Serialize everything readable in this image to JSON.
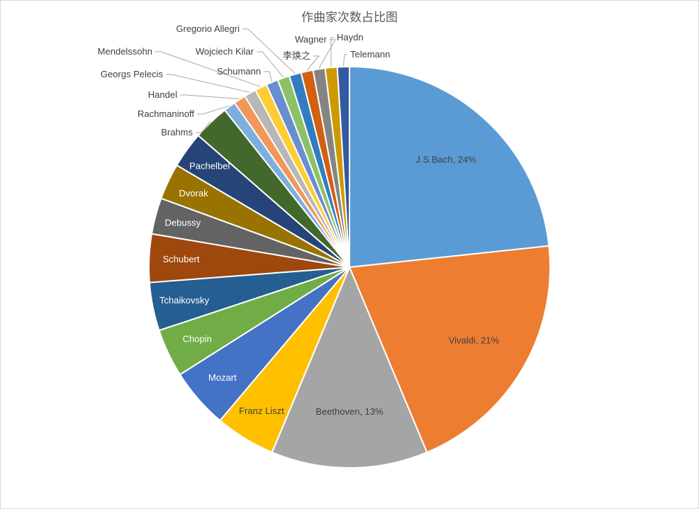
{
  "chart_data": {
    "type": "pie",
    "title": "作曲家次数占比图",
    "slices": [
      {
        "label": "J.S.Bach",
        "value": 24,
        "display": "J.S.Bach, 24%",
        "color": "#5b9bd5"
      },
      {
        "label": "Vivaldi",
        "value": 21,
        "display": "Vivaldi, 21%",
        "color": "#ed7d31"
      },
      {
        "label": "Beethoven",
        "value": 13,
        "display": "Beethoven, 13%",
        "color": "#a5a5a5"
      },
      {
        "label": "Franz Liszt",
        "value": 5,
        "display": "Franz Liszt",
        "color": "#ffc000"
      },
      {
        "label": "Mozart",
        "value": 5,
        "display": "Mozart",
        "color": "#4472c4"
      },
      {
        "label": "Chopin",
        "value": 4,
        "display": "Chopin",
        "color": "#70ad47"
      },
      {
        "label": "Tchaikovsky",
        "value": 4,
        "display": "Tchaikovsky",
        "color": "#255e91"
      },
      {
        "label": "Schubert",
        "value": 4,
        "display": "Schubert",
        "color": "#9e480e"
      },
      {
        "label": "Debussy",
        "value": 3,
        "display": "Debussy",
        "color": "#636363"
      },
      {
        "label": "Dvorak",
        "value": 3,
        "display": "Dvorak",
        "color": "#997300"
      },
      {
        "label": "Pachelbel",
        "value": 3,
        "display": "Pachelbel",
        "color": "#264478"
      },
      {
        "label": "Brahms",
        "value": 3,
        "display": "Brahms",
        "color": "#43682b"
      },
      {
        "label": "Rachmaninoff",
        "value": 1,
        "display": "Rachmaninoff",
        "color": "#7cafdd"
      },
      {
        "label": "Handel",
        "value": 1,
        "display": "Handel",
        "color": "#f1975a"
      },
      {
        "label": "Georgs Pelecis",
        "value": 1,
        "display": "Georgs Pelecis",
        "color": "#b7b7b7"
      },
      {
        "label": "Mendelssohn",
        "value": 1,
        "display": "Mendelssohn",
        "color": "#ffcd33"
      },
      {
        "label": "Schumann",
        "value": 1,
        "display": "Schumann",
        "color": "#698ed0"
      },
      {
        "label": "Wojciech Kilar",
        "value": 1,
        "display": "Wojciech Kilar",
        "color": "#8cc168"
      },
      {
        "label": "Gregorio Allegri",
        "value": 1,
        "display": "Gregorio Allegri",
        "color": "#327dc2"
      },
      {
        "label": "李焕之",
        "value": 1,
        "display": "李焕之",
        "color": "#d26012"
      },
      {
        "label": "Wagner",
        "value": 1,
        "display": "Wagner",
        "color": "#848484"
      },
      {
        "label": "Haydn",
        "value": 1,
        "display": "Haydn",
        "color": "#cc9a00"
      },
      {
        "label": "Telemann",
        "value": 1,
        "display": "Telemann",
        "color": "#335aa1"
      }
    ]
  }
}
